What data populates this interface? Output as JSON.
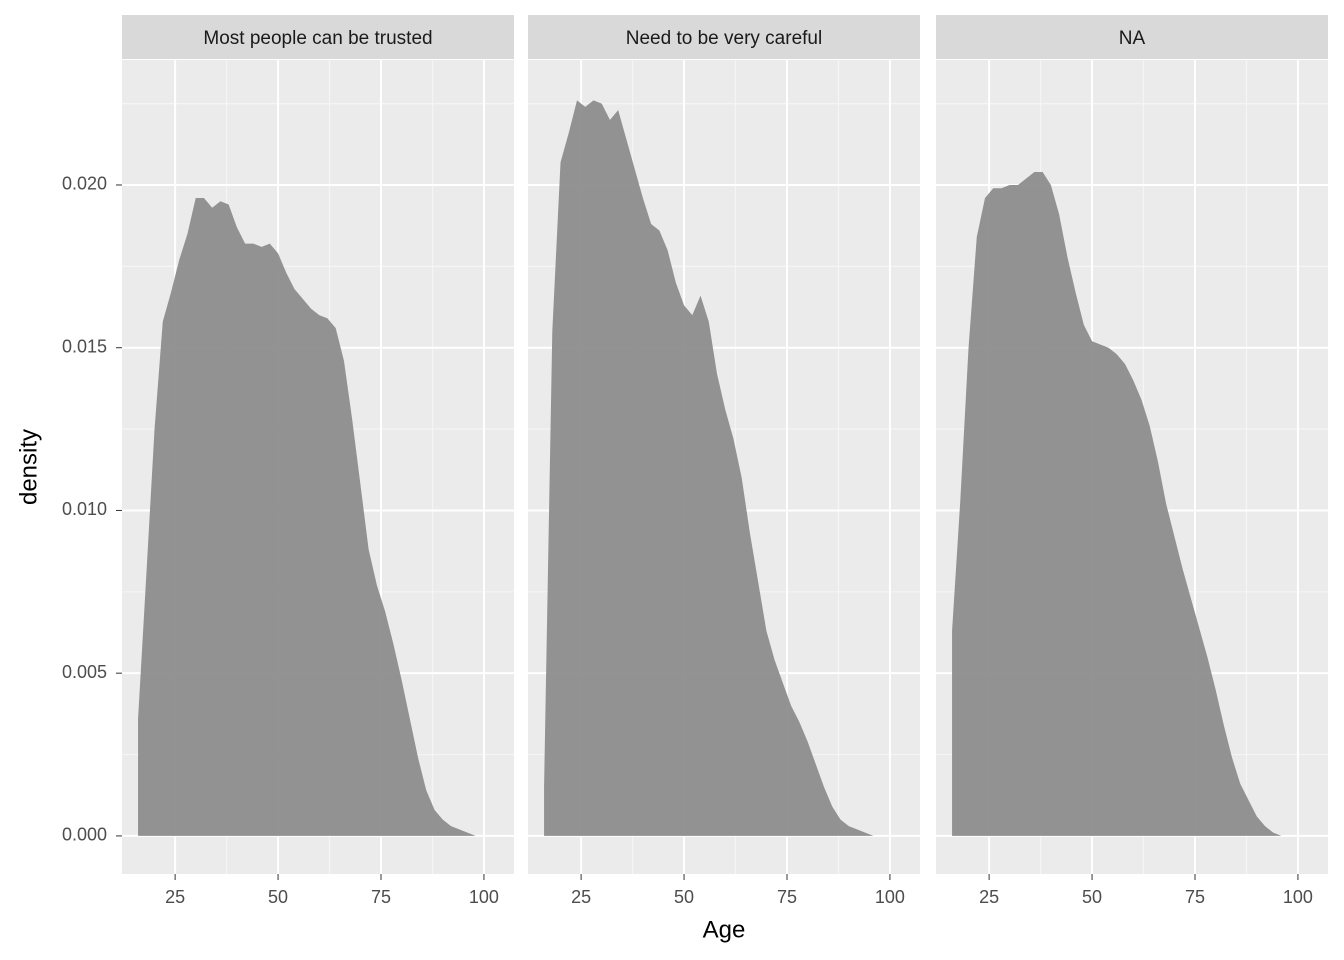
{
  "chart_data": {
    "type": "area",
    "xlabel": "Age",
    "ylabel": "density",
    "color": "#8d8d8d",
    "grid": true,
    "xlim": [
      12.1,
      107.3
    ],
    "ylim": [
      -0.00117,
      0.02384
    ],
    "xticks": [
      25,
      50,
      75,
      100
    ],
    "yticks": [
      {
        "value": 0,
        "label": "0.000"
      },
      0.005,
      {
        "value": 0.01,
        "label": "0.010"
      },
      0.015,
      {
        "value": 0.02,
        "label": "0.020"
      }
    ],
    "x": [
      16,
      18,
      20,
      22,
      24,
      26,
      28,
      30,
      32,
      34,
      36,
      38,
      40,
      42,
      44,
      46,
      48,
      50,
      52,
      54,
      56,
      58,
      60,
      62,
      64,
      66,
      68,
      70,
      72,
      74,
      76,
      78,
      80,
      82,
      84,
      86,
      88,
      90,
      92,
      94,
      96,
      98,
      100
    ],
    "facets": [
      {
        "title": "Most people can be trusted",
        "values": [
          0.0036,
          0.008,
          0.0125,
          0.0158,
          0.0167,
          0.0177,
          0.0185,
          0.0196,
          0.0196,
          0.0193,
          0.0195,
          0.0194,
          0.0187,
          0.0182,
          0.0182,
          0.0181,
          0.0182,
          0.0179,
          0.0173,
          0.0168,
          0.0165,
          0.0162,
          0.016,
          0.0159,
          0.0156,
          0.0146,
          0.0128,
          0.0108,
          0.0088,
          0.0077,
          0.0069,
          0.0059,
          0.0048,
          0.0036,
          0.0024,
          0.0014,
          0.0008,
          0.0005,
          0.0003,
          0.0002,
          0.0001,
          0,
          0
        ]
      },
      {
        "title": "Need to be very careful",
        "values": [
          0.0015,
          0.0155,
          0.0207,
          0.0216,
          0.0226,
          0.0224,
          0.0226,
          0.0225,
          0.022,
          0.0223,
          0.0214,
          0.0205,
          0.0196,
          0.0188,
          0.0186,
          0.018,
          0.017,
          0.0163,
          0.016,
          0.0166,
          0.0158,
          0.0142,
          0.0131,
          0.0122,
          0.011,
          0.0093,
          0.0078,
          0.0063,
          0.0054,
          0.0047,
          0.004,
          0.0035,
          0.0029,
          0.0022,
          0.0015,
          0.0009,
          0.0005,
          0.0003,
          0.0002,
          0.0001,
          0,
          0,
          0
        ]
      },
      {
        "title": "NA",
        "values": [
          0.0063,
          0.0103,
          0.015,
          0.0184,
          0.0196,
          0.0199,
          0.0199,
          0.02,
          0.02,
          0.0202,
          0.0204,
          0.0204,
          0.02,
          0.0191,
          0.0178,
          0.0167,
          0.0157,
          0.0152,
          0.0151,
          0.015,
          0.0148,
          0.0145,
          0.014,
          0.0134,
          0.0126,
          0.0115,
          0.0102,
          0.0092,
          0.0082,
          0.0073,
          0.0064,
          0.0055,
          0.0045,
          0.0034,
          0.0024,
          0.0016,
          0.0011,
          0.0006,
          0.0003,
          0.0001,
          0,
          0,
          0
        ]
      }
    ]
  }
}
